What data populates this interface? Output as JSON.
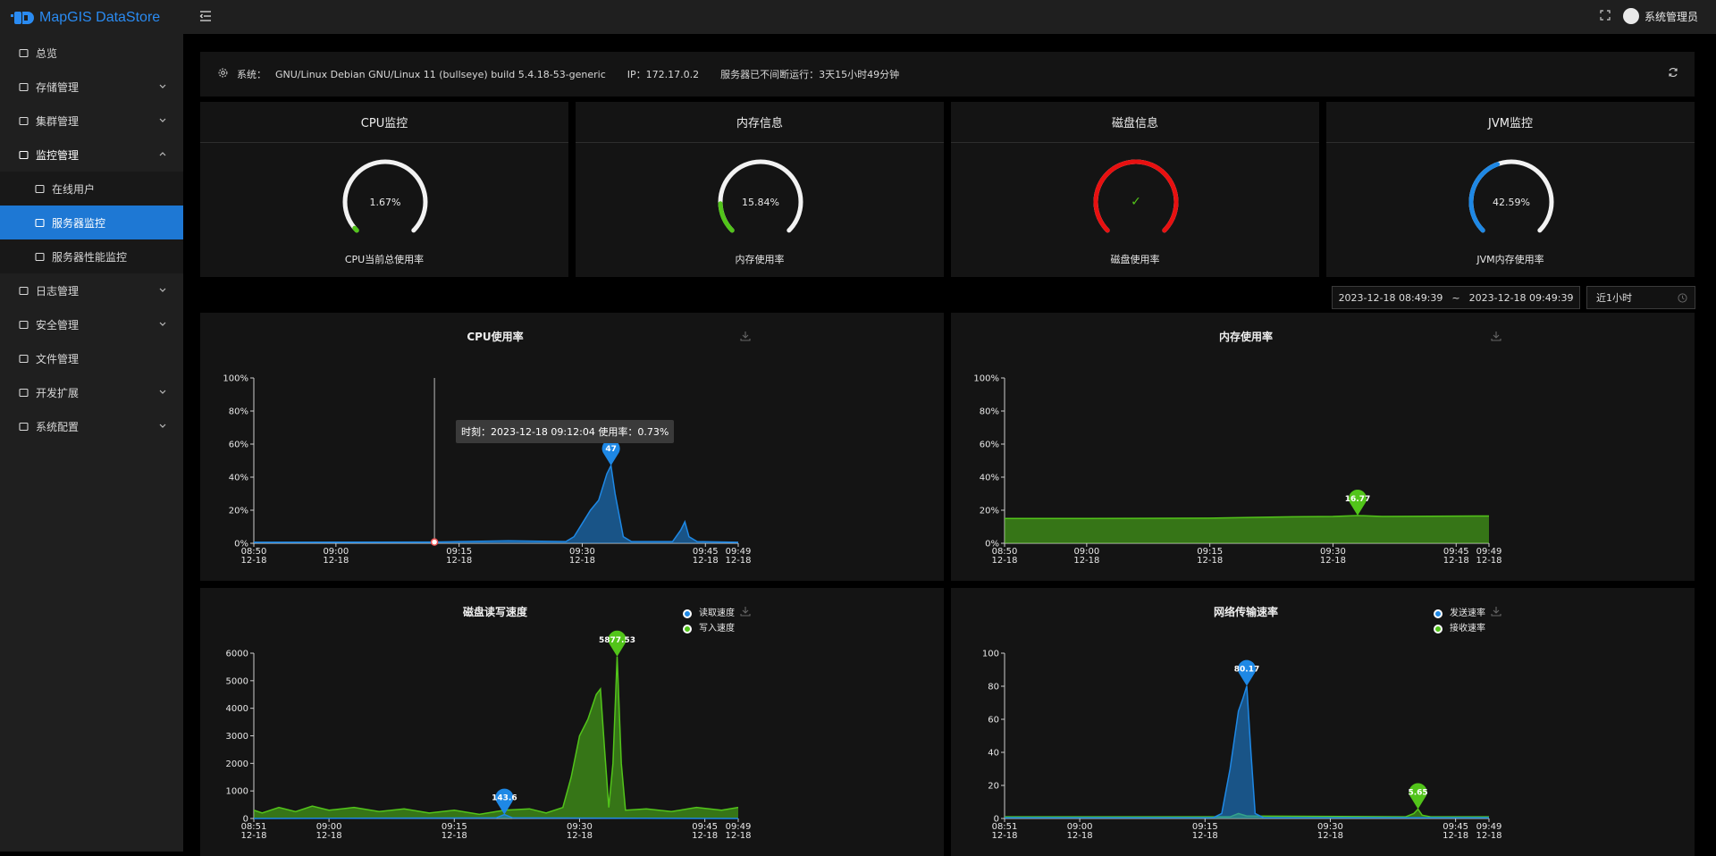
{
  "app": {
    "title": "MapGIS DataStore"
  },
  "sidebar": {
    "items": [
      {
        "label": "总览",
        "icon": "dashboard-icon"
      },
      {
        "label": "存储管理",
        "icon": "storage-icon"
      },
      {
        "label": "集群管理",
        "icon": "cluster-icon"
      },
      {
        "label": "监控管理",
        "icon": "monitor-icon"
      },
      {
        "label": "在线用户",
        "icon": "link-icon"
      },
      {
        "label": "服务器监控",
        "icon": "server-icon"
      },
      {
        "label": "服务器性能监控",
        "icon": "performance-icon"
      },
      {
        "label": "日志管理",
        "icon": "log-icon"
      },
      {
        "label": "安全管理",
        "icon": "shield-icon"
      },
      {
        "label": "文件管理",
        "icon": "file-icon"
      },
      {
        "label": "开发扩展",
        "icon": "extension-icon"
      },
      {
        "label": "系统配置",
        "icon": "gear-icon"
      }
    ]
  },
  "header": {
    "user": "系统管理员"
  },
  "system": {
    "os_label": "系统：",
    "os": "GNU/Linux Debian GNU/Linux 11 (bullseye) build 5.4.18-53-generic",
    "ip": "IP：172.17.0.2",
    "uptime": "服务器已不间断运行：3天15小时49分钟"
  },
  "gauges": [
    {
      "title": "CPU监控",
      "value": "1.67%",
      "label": "CPU当前总使用率",
      "percent": 1.67,
      "color": "#52c41a"
    },
    {
      "title": "内存信息",
      "value": "15.84%",
      "label": "内存使用率",
      "percent": 15.84,
      "color": "#52c41a"
    },
    {
      "title": "磁盘信息",
      "value": "✓",
      "label": "磁盘使用率",
      "percent": 100,
      "color": "#e81010"
    },
    {
      "title": "JVM监控",
      "value": "42.59%",
      "label": "JVM内存使用率",
      "percent": 42.59,
      "color": "#1e88e5"
    }
  ],
  "daterange": {
    "start": "2023-12-18 08:49:39",
    "sep": "~",
    "end": "2023-12-18 09:49:39",
    "recent": "近1小时"
  },
  "charts": {
    "cpu": {
      "title": "CPU使用率",
      "tooltip": "时刻：2023-12-18 09:12:04 使用率：0.73%"
    },
    "mem": {
      "title": "内存使用率"
    },
    "disk": {
      "title": "磁盘读写速度",
      "legend": [
        "读取速度",
        "写入速度"
      ]
    },
    "net": {
      "title": "网络传输速率",
      "legend": [
        "发送速率",
        "接收速率"
      ]
    }
  },
  "chart_data": [
    {
      "type": "area",
      "title": "CPU使用率",
      "x_ticks": [
        "08:50 12-18",
        "09:00 12-18",
        "09:15 12-18",
        "09:30 12-18",
        "09:45 12-18",
        "09:49 12-18"
      ],
      "y_ticks": [
        "0%",
        "20%",
        "40%",
        "60%",
        "80%",
        "100%"
      ],
      "ylim": [
        0,
        100
      ],
      "series": [
        {
          "color": "#1e88e5",
          "points": [
            [
              "08:50",
              0.6
            ],
            [
              "09:12",
              0.73
            ],
            [
              "09:21",
              1.5
            ],
            [
              "09:28",
              1
            ],
            [
              "09:29",
              4
            ],
            [
              "09:30",
              12
            ],
            [
              "09:31",
              20
            ],
            [
              "09:32",
              26
            ],
            [
              "09:33",
              42
            ],
            [
              "09:33.5",
              47
            ],
            [
              "09:34",
              30
            ],
            [
              "09:35",
              4
            ],
            [
              "09:36",
              1
            ],
            [
              "09:41",
              1
            ],
            [
              "09:42",
              8
            ],
            [
              "09:42.5",
              13
            ],
            [
              "09:43",
              4
            ],
            [
              "09:44",
              1
            ],
            [
              "09:49",
              0.6
            ]
          ]
        }
      ],
      "mark_point": {
        "x": "09:33.5",
        "y": 47,
        "label": "47"
      }
    },
    {
      "type": "area",
      "title": "内存使用率",
      "x_ticks": [
        "08:50 12-18",
        "09:00 12-18",
        "09:15 12-18",
        "09:30 12-18",
        "09:45 12-18",
        "09:49 12-18"
      ],
      "y_ticks": [
        "0%",
        "20%",
        "40%",
        "60%",
        "80%",
        "100%"
      ],
      "ylim": [
        0,
        100
      ],
      "series": [
        {
          "color": "#52c41a",
          "points": [
            [
              "08:50",
              15
            ],
            [
              "09:00",
              15
            ],
            [
              "09:15",
              15.2
            ],
            [
              "09:25",
              16
            ],
            [
              "09:30",
              16.2
            ],
            [
              "09:33",
              16.77
            ],
            [
              "09:36",
              16.2
            ],
            [
              "09:49",
              16.5
            ]
          ]
        }
      ],
      "mark_point": {
        "x": "09:33",
        "y": 16.77,
        "label": "16.77"
      }
    },
    {
      "type": "area",
      "title": "磁盘读写速度",
      "x_ticks": [
        "08:51 12-18",
        "09:00 12-18",
        "09:15 12-18",
        "09:30 12-18",
        "09:45 12-18",
        "09:49 12-18"
      ],
      "y_ticks": [
        "0",
        "1000",
        "2000",
        "3000",
        "4000",
        "5000",
        "6000"
      ],
      "ylim": [
        0,
        6000
      ],
      "series": [
        {
          "name": "读取速度",
          "color": "#1e88e5",
          "points": [
            [
              "08:51",
              0
            ],
            [
              "09:20",
              20
            ],
            [
              "09:21",
              143.6
            ],
            [
              "09:22",
              20
            ],
            [
              "09:49",
              0
            ]
          ]
        },
        {
          "name": "写入速度",
          "color": "#52c41a",
          "points": [
            [
              "08:51",
              300
            ],
            [
              "08:52",
              200
            ],
            [
              "08:54",
              400
            ],
            [
              "08:56",
              250
            ],
            [
              "08:58",
              450
            ],
            [
              "09:00",
              300
            ],
            [
              "09:03",
              400
            ],
            [
              "09:06",
              250
            ],
            [
              "09:09",
              350
            ],
            [
              "09:12",
              200
            ],
            [
              "09:15",
              300
            ],
            [
              "09:18",
              150
            ],
            [
              "09:21",
              300
            ],
            [
              "09:24",
              350
            ],
            [
              "09:26",
              200
            ],
            [
              "09:28",
              400
            ],
            [
              "09:29",
              1500
            ],
            [
              "09:30",
              3000
            ],
            [
              "09:31",
              3600
            ],
            [
              "09:32",
              4500
            ],
            [
              "09:32.5",
              4700
            ],
            [
              "09:33",
              2500
            ],
            [
              "09:33.5",
              400
            ],
            [
              "09:34",
              2000
            ],
            [
              "09:34.5",
              5877.53
            ],
            [
              "09:35",
              2000
            ],
            [
              "09:35.5",
              300
            ],
            [
              "09:38",
              350
            ],
            [
              "09:41",
              250
            ],
            [
              "09:44",
              400
            ],
            [
              "09:47",
              300
            ],
            [
              "09:49",
              400
            ]
          ]
        }
      ],
      "mark_points": [
        {
          "x": "09:21",
          "y": 143.6,
          "label": "143.6"
        },
        {
          "x": "09:34.5",
          "y": 5877.53,
          "label": "5877.53"
        }
      ]
    },
    {
      "type": "area",
      "title": "网络传输速率",
      "x_ticks": [
        "08:51 12-18",
        "09:00 12-18",
        "09:15 12-18",
        "09:30 12-18",
        "09:45 12-18",
        "09:49 12-18"
      ],
      "y_ticks": [
        "0",
        "20",
        "40",
        "60",
        "80",
        "100"
      ],
      "ylim": [
        0,
        100
      ],
      "series": [
        {
          "name": "发送速率",
          "color": "#1e88e5",
          "points": [
            [
              "08:51",
              0.5
            ],
            [
              "09:16",
              0.5
            ],
            [
              "09:17",
              3
            ],
            [
              "09:18",
              30
            ],
            [
              "09:19",
              65
            ],
            [
              "09:19.5",
              72
            ],
            [
              "09:20",
              80.17
            ],
            [
              "09:20.5",
              40
            ],
            [
              "09:21",
              3
            ],
            [
              "09:22",
              0.5
            ],
            [
              "09:49",
              0.5
            ]
          ]
        },
        {
          "name": "接收速率",
          "color": "#52c41a",
          "points": [
            [
              "08:51",
              1
            ],
            [
              "09:18",
              1
            ],
            [
              "09:19",
              3
            ],
            [
              "09:20",
              1.5
            ],
            [
              "09:39",
              1
            ],
            [
              "09:40",
              3
            ],
            [
              "09:40.5",
              5.65
            ],
            [
              "09:41",
              2
            ],
            [
              "09:42",
              1
            ],
            [
              "09:49",
              1
            ]
          ]
        }
      ],
      "mark_points": [
        {
          "x": "09:20",
          "y": 80.17,
          "label": "80.17"
        },
        {
          "x": "09:40.5",
          "y": 5.65,
          "label": "5.65"
        }
      ]
    }
  ]
}
